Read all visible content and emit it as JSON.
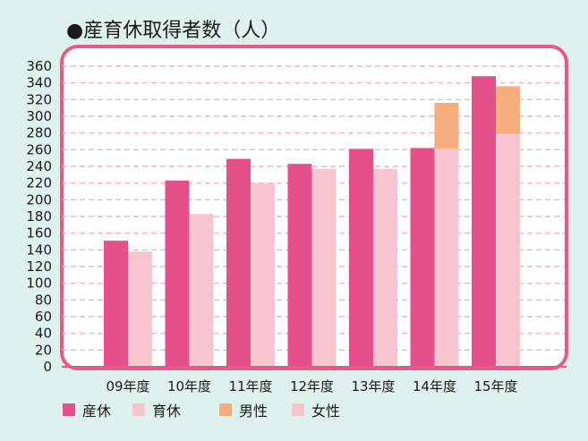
{
  "title": "●産育休取得者数（人）",
  "colors": {
    "background": "#dff1ec",
    "frame": "#e65a8a",
    "plot": "#ffffff",
    "grid": "#f2a0bd",
    "sankyu": "#e5508a",
    "ikukyu": "#f7c4cf",
    "male": "#f5ad7e",
    "female": "#f7c4cf"
  },
  "legend": [
    {
      "label": "産休",
      "color": "#e5508a"
    },
    {
      "label": "育休",
      "color": "#f7c4cf"
    },
    {
      "label": "男性",
      "color": "#f5ad7e"
    },
    {
      "label": "女性",
      "color": "#f7c4cf"
    }
  ],
  "chart_data": {
    "type": "bar",
    "title": "●産育休取得者数（人）",
    "categories": [
      "09年度",
      "10年度",
      "11年度",
      "12年度",
      "13年度",
      "14年度",
      "15年度"
    ],
    "series": [
      {
        "name": "産休",
        "values": [
          151,
          223,
          249,
          243,
          261,
          262,
          348
        ]
      },
      {
        "name": "育休",
        "values": [
          138,
          183,
          220,
          237,
          237,
          316,
          336
        ],
        "breakdown": [
          {
            "name": "女性",
            "values": [
              138,
              183,
              220,
              237,
              237,
              261,
              279
            ]
          },
          {
            "name": "男性",
            "values": [
              0,
              0,
              0,
              0,
              0,
              55,
              57
            ]
          }
        ]
      }
    ],
    "ylim": [
      0,
      360
    ],
    "yticks": [
      0,
      20,
      40,
      60,
      80,
      100,
      120,
      140,
      160,
      180,
      200,
      220,
      240,
      260,
      280,
      300,
      320,
      340,
      360
    ],
    "grid": true,
    "legend_position": "bottom-left"
  }
}
